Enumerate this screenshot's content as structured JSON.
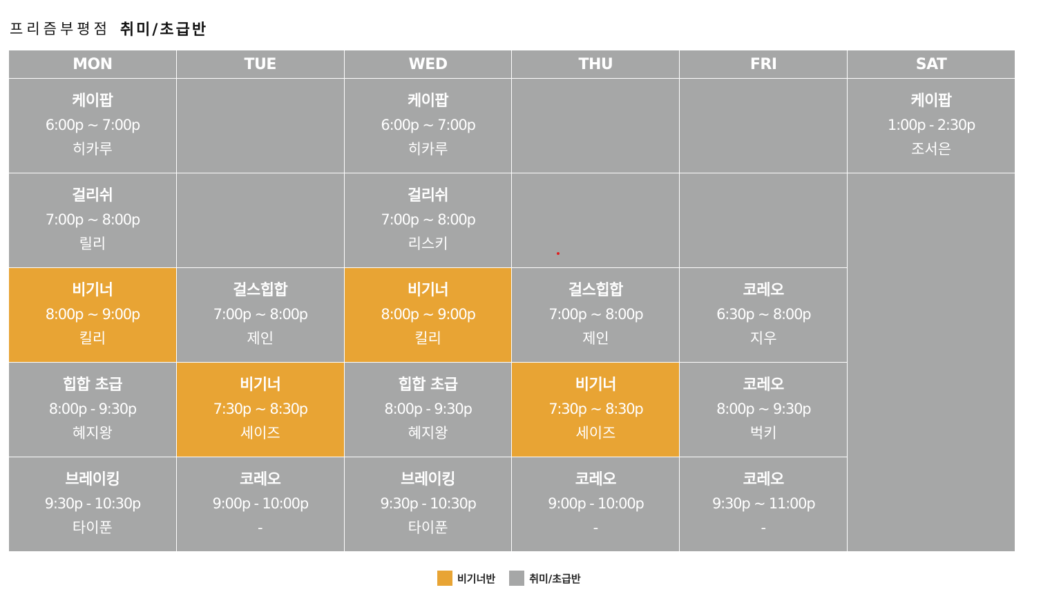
{
  "header": {
    "branch": "프리즘부평점",
    "course": "취미/초급반"
  },
  "days": [
    "MON",
    "TUE",
    "WED",
    "THU",
    "FRI",
    "SAT"
  ],
  "slots": {
    "r1": {
      "mon": {
        "class": "케이팝",
        "time": "6:00p ~ 7:00p",
        "teacher": "히카루"
      },
      "wed": {
        "class": "케이팝",
        "time": "6:00p ~ 7:00p",
        "teacher": "히카루"
      },
      "sat": {
        "class": "케이팝",
        "time": "1:00p - 2:30p",
        "teacher": "조서은"
      }
    },
    "r2": {
      "mon": {
        "class": "걸리쉬",
        "time": "7:00p ~ 8:00p",
        "teacher": "릴리"
      },
      "wed": {
        "class": "걸리쉬",
        "time": "7:00p ~ 8:00p",
        "teacher": "리스키"
      }
    },
    "r3": {
      "mon": {
        "class": "비기너",
        "time": "8:00p ~ 9:00p",
        "teacher": "킬리"
      },
      "tue": {
        "class": "걸스힙합",
        "time": "7:00p ~ 8:00p",
        "teacher": "제인"
      },
      "wed": {
        "class": "비기너",
        "time": "8:00p ~ 9:00p",
        "teacher": "킬리"
      },
      "thu": {
        "class": "걸스힙합",
        "time": "7:00p ~ 8:00p",
        "teacher": "제인"
      },
      "fri": {
        "class": "코레오",
        "time": "6:30p ~ 8:00p",
        "teacher": "지우"
      }
    },
    "r4": {
      "mon": {
        "class": "힙합 초급",
        "time": "8:00p - 9:30p",
        "teacher": "혜지왕"
      },
      "tue": {
        "class": "비기너",
        "time": "7:30p ~ 8:30p",
        "teacher": "세이즈"
      },
      "wed": {
        "class": "힙합 초급",
        "time": "8:00p - 9:30p",
        "teacher": "혜지왕"
      },
      "thu": {
        "class": "비기너",
        "time": "7:30p ~ 8:30p",
        "teacher": "세이즈"
      },
      "fri": {
        "class": "코레오",
        "time": "8:00p ~ 9:30p",
        "teacher": "벅키"
      }
    },
    "r5": {
      "mon": {
        "class": "브레이킹",
        "time": "9:30p - 10:30p",
        "teacher": "타이푼"
      },
      "tue": {
        "class": "코레오",
        "time": "9:00p - 10:00p",
        "teacher": "-"
      },
      "wed": {
        "class": "브레이킹",
        "time": "9:30p - 10:30p",
        "teacher": "타이푼"
      },
      "thu": {
        "class": "코레오",
        "time": "9:00p - 10:00p",
        "teacher": "-"
      },
      "fri": {
        "class": "코레오",
        "time": "9:30p ~ 11:00p",
        "teacher": "-"
      }
    }
  },
  "legend": {
    "beginner": "비기너반",
    "hobby": "취미/초급반"
  },
  "colors": {
    "beginner": "#e8a434",
    "hobby": "#a6a7a7",
    "marker": "#e02020"
  }
}
